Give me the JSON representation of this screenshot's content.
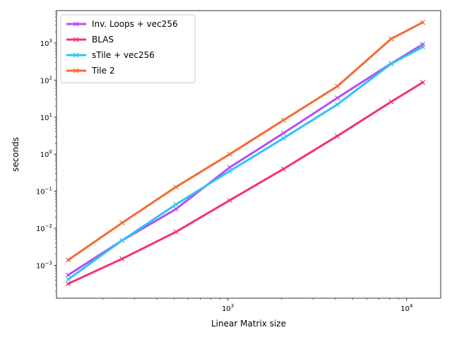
{
  "chart_data": {
    "type": "line",
    "title": "",
    "xlabel": "Linear Matrix size",
    "ylabel": "seconds",
    "x_scale": "log",
    "y_scale": "log",
    "xlim": [
      110,
      15500
    ],
    "ylim": [
      0.00013,
      7500
    ],
    "grid": false,
    "legend_position": "top-left",
    "x_ticks": [
      {
        "value": 1000,
        "label": "10^3"
      },
      {
        "value": 10000,
        "label": "10^4"
      }
    ],
    "y_ticks": [
      {
        "value": 0.001,
        "label": "10^−3"
      },
      {
        "value": 0.01,
        "label": "10^−2"
      },
      {
        "value": 0.1,
        "label": "10^−1"
      },
      {
        "value": 1,
        "label": "10^0"
      },
      {
        "value": 10,
        "label": "10^1"
      },
      {
        "value": 100,
        "label": "10^2"
      },
      {
        "value": 1000,
        "label": "10^3"
      }
    ],
    "series": [
      {
        "name": "Inv. Loops + vec256",
        "color": "#b44ff5",
        "x": [
          128,
          256,
          512,
          1024,
          2048,
          4096,
          8192,
          12288
        ],
        "y": [
          0.00055,
          0.0047,
          0.033,
          0.44,
          3.7,
          33,
          280,
          920
        ]
      },
      {
        "name": "BLAS",
        "color": "#f5336f",
        "x": [
          128,
          256,
          512,
          1024,
          2048,
          4096,
          8192,
          12288
        ],
        "y": [
          0.00032,
          0.0015,
          0.008,
          0.057,
          0.4,
          3.1,
          26,
          86
        ]
      },
      {
        "name": "sTile + vec256",
        "color": "#2ec4f5",
        "x": [
          128,
          256,
          512,
          1024,
          2048,
          4096,
          8192,
          12288
        ],
        "y": [
          0.00042,
          0.0047,
          0.044,
          0.35,
          2.7,
          22,
          275,
          780
        ]
      },
      {
        "name": "Tile 2",
        "color": "#f56a33",
        "x": [
          128,
          256,
          512,
          1024,
          2048,
          4096,
          8192,
          12288
        ],
        "y": [
          0.0014,
          0.014,
          0.13,
          1.0,
          8.3,
          68,
          1300,
          3600
        ]
      }
    ]
  }
}
